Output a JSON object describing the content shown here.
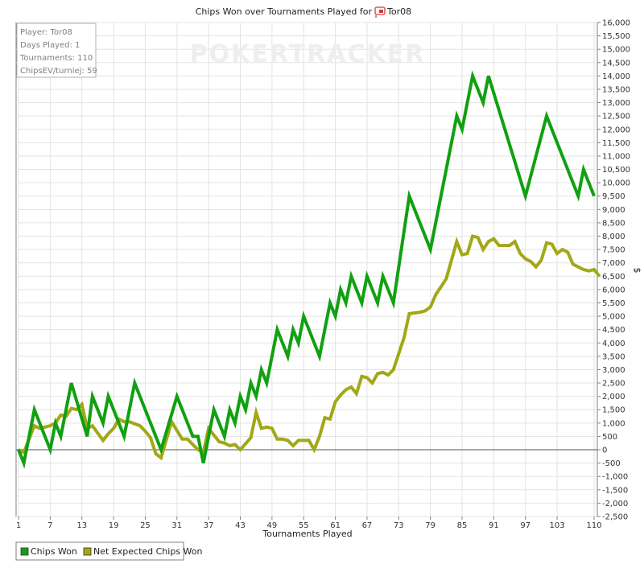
{
  "chart_data": {
    "type": "line",
    "title": "Chips Won over Tournaments Played for",
    "player_name": "Tor08",
    "watermark": "POKERTRACKER",
    "xlabel": "Tournaments Played",
    "ylabel": "$",
    "xlim": [
      1,
      110
    ],
    "ylim": [
      -2500,
      16000
    ],
    "x_ticks": [
      1,
      7,
      13,
      19,
      25,
      31,
      37,
      43,
      49,
      55,
      61,
      67,
      73,
      79,
      85,
      91,
      97,
      103,
      110
    ],
    "y_ticks": [
      -2500,
      -2000,
      -1500,
      -1000,
      -500,
      0,
      500,
      1000,
      1500,
      2000,
      2500,
      3000,
      3500,
      4000,
      4500,
      5000,
      5500,
      6000,
      6500,
      7000,
      7500,
      8000,
      8500,
      9000,
      9500,
      10000,
      10500,
      11000,
      11500,
      12000,
      12500,
      13000,
      13500,
      14000,
      14500,
      15000,
      15500,
      16000
    ],
    "y_tick_labels": [
      "-2,500",
      "-2,000",
      "-1,500",
      "-1,000",
      "-500",
      "0",
      "500",
      "1,000",
      "1,500",
      "2,000",
      "2,500",
      "3,000",
      "3,500",
      "4,000",
      "4,500",
      "5,000",
      "5,500",
      "6,000",
      "6,500",
      "7,000",
      "7,500",
      "8,000",
      "8,500",
      "9,000",
      "9,500",
      "10,000",
      "10,500",
      "11,000",
      "11,500",
      "12,000",
      "12,500",
      "13,000",
      "13,500",
      "14,000",
      "14,500",
      "15,000",
      "15,500",
      "16,000"
    ],
    "grid": true,
    "legend_position": "bottom-left",
    "series": [
      {
        "name": "Chips Won",
        "color": "#11a011",
        "points": [
          [
            1,
            0
          ],
          [
            2,
            -500
          ],
          [
            4,
            1500
          ],
          [
            7,
            0
          ],
          [
            8,
            1000
          ],
          [
            9,
            500
          ],
          [
            11,
            2500
          ],
          [
            14,
            500
          ],
          [
            15,
            2000
          ],
          [
            17,
            1000
          ],
          [
            18,
            2000
          ],
          [
            21,
            500
          ],
          [
            23,
            2500
          ],
          [
            28,
            0
          ],
          [
            31,
            2000
          ],
          [
            34,
            500
          ],
          [
            35,
            500
          ],
          [
            36,
            -500
          ],
          [
            38,
            1500
          ],
          [
            40,
            500
          ],
          [
            41,
            1500
          ],
          [
            42,
            1000
          ],
          [
            43,
            2000
          ],
          [
            44,
            1500
          ],
          [
            45,
            2500
          ],
          [
            46,
            2000
          ],
          [
            47,
            3000
          ],
          [
            48,
            2500
          ],
          [
            50,
            4500
          ],
          [
            52,
            3500
          ],
          [
            53,
            4500
          ],
          [
            54,
            4000
          ],
          [
            55,
            5000
          ],
          [
            58,
            3500
          ],
          [
            60,
            5500
          ],
          [
            61,
            5000
          ],
          [
            62,
            6000
          ],
          [
            63,
            5500
          ],
          [
            64,
            6500
          ],
          [
            66,
            5500
          ],
          [
            67,
            6500
          ],
          [
            69,
            5500
          ],
          [
            70,
            6500
          ],
          [
            72,
            5500
          ],
          [
            75,
            9500
          ],
          [
            79,
            7500
          ],
          [
            84,
            12500
          ],
          [
            85,
            12000
          ],
          [
            87,
            14000
          ],
          [
            89,
            13000
          ],
          [
            90,
            14000
          ],
          [
            97,
            9500
          ],
          [
            101,
            12500
          ],
          [
            107,
            9500
          ],
          [
            108,
            10500
          ],
          [
            110,
            9500
          ]
        ]
      },
      {
        "name": "Net Expected Chips Won",
        "color": "#a2a816",
        "points": [
          [
            1,
            0
          ],
          [
            2,
            -100
          ],
          [
            4,
            900
          ],
          [
            5,
            800
          ],
          [
            7,
            900
          ],
          [
            8,
            1000
          ],
          [
            9,
            1300
          ],
          [
            10,
            1250
          ],
          [
            11,
            1550
          ],
          [
            12,
            1500
          ],
          [
            13,
            1700
          ],
          [
            14,
            800
          ],
          [
            15,
            900
          ],
          [
            17,
            350
          ],
          [
            18,
            600
          ],
          [
            19,
            800
          ],
          [
            20,
            1150
          ],
          [
            21,
            1050
          ],
          [
            22,
            1050
          ],
          [
            24,
            900
          ],
          [
            25,
            700
          ],
          [
            26,
            450
          ],
          [
            27,
            -150
          ],
          [
            28,
            -300
          ],
          [
            30,
            1050
          ],
          [
            32,
            400
          ],
          [
            33,
            400
          ],
          [
            35,
            0
          ],
          [
            36,
            -100
          ],
          [
            37,
            800
          ],
          [
            39,
            300
          ],
          [
            40,
            250
          ],
          [
            41,
            150
          ],
          [
            42,
            200
          ],
          [
            43,
            0
          ],
          [
            45,
            450
          ],
          [
            46,
            1400
          ],
          [
            47,
            800
          ],
          [
            48,
            850
          ],
          [
            49,
            800
          ],
          [
            50,
            400
          ],
          [
            51,
            400
          ],
          [
            52,
            350
          ],
          [
            53,
            150
          ],
          [
            54,
            350
          ],
          [
            55,
            350
          ],
          [
            56,
            350
          ],
          [
            57,
            0
          ],
          [
            58,
            500
          ],
          [
            59,
            1200
          ],
          [
            60,
            1150
          ],
          [
            61,
            1800
          ],
          [
            62,
            2050
          ],
          [
            63,
            2250
          ],
          [
            64,
            2350
          ],
          [
            65,
            2100
          ],
          [
            66,
            2750
          ],
          [
            67,
            2700
          ],
          [
            68,
            2500
          ],
          [
            69,
            2850
          ],
          [
            70,
            2900
          ],
          [
            71,
            2800
          ],
          [
            72,
            3000
          ],
          [
            74,
            4200
          ],
          [
            75,
            5100
          ],
          [
            77,
            5150
          ],
          [
            78,
            5200
          ],
          [
            79,
            5350
          ],
          [
            80,
            5800
          ],
          [
            82,
            6400
          ],
          [
            84,
            7800
          ],
          [
            85,
            7300
          ],
          [
            86,
            7350
          ],
          [
            87,
            8000
          ],
          [
            88,
            7950
          ],
          [
            89,
            7500
          ],
          [
            90,
            7800
          ],
          [
            91,
            7900
          ],
          [
            92,
            7650
          ],
          [
            94,
            7650
          ],
          [
            95,
            7800
          ],
          [
            96,
            7350
          ],
          [
            97,
            7150
          ],
          [
            98,
            7050
          ],
          [
            99,
            6850
          ],
          [
            100,
            7100
          ],
          [
            101,
            7750
          ],
          [
            102,
            7700
          ],
          [
            103,
            7350
          ],
          [
            104,
            7500
          ],
          [
            105,
            7400
          ],
          [
            106,
            6950
          ],
          [
            107,
            6850
          ],
          [
            108,
            6750
          ],
          [
            109,
            6700
          ],
          [
            110,
            6750
          ],
          [
            111,
            6500
          ]
        ]
      }
    ]
  },
  "info_box": {
    "player": "Player: Tor08",
    "days": "Days Played: 1",
    "tournaments": "Tournaments: 110",
    "chipsev": "ChipsEV/turniej: 59"
  },
  "legend": {
    "items": [
      {
        "label": "Chips Won",
        "color": "#11a011"
      },
      {
        "label": "Net Expected Chips Won",
        "color": "#a2a816"
      }
    ]
  }
}
